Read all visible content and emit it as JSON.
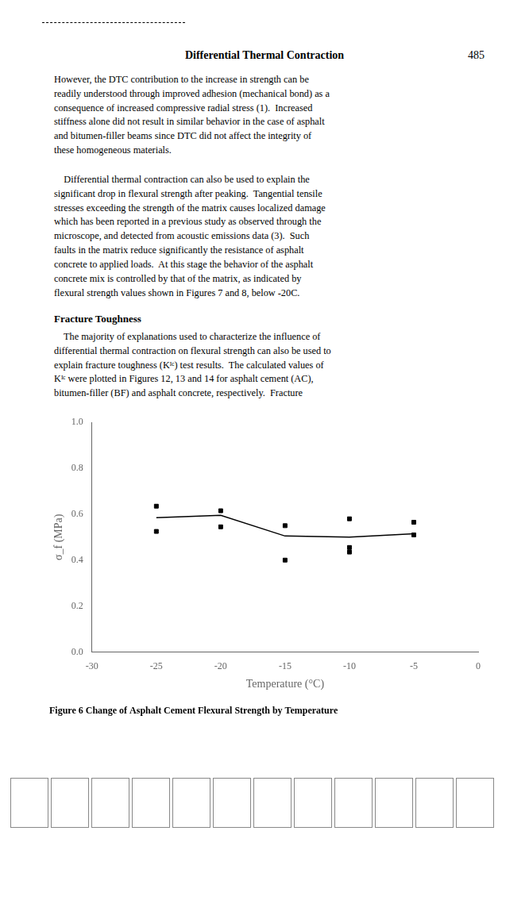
{
  "page": {
    "header": "Differential Thermal Contraction",
    "page_number": "485",
    "paragraphs_before_section": [
      "However, the DTC contribution to the increase in strength can be\nreadily understood through improved adhesion (mechanical bond) as a\nconsequence of increased compressive radial stress (1).  Increased\nstiffness alone did not result in similar behavior in the case of asphalt\nand bitumen-filler beams since DTC did not affect the integrity of\nthese homogeneous materials.",
      "    Differential thermal contraction can also be used to explain the\nsignificant drop in flexural strength after peaking.  Tangential tensile\nstresses exceeding the strength of the matrix causes localized damage\nwhich has been reported in a previous study as observed through the\nmicroscope, and detected from acoustic emissions data (3).  Such\nfaults in the matrix reduce significantly the resistance of asphalt\nconcrete to applied loads.  At this stage the behavior of the asphalt\nconcrete mix is controlled by that of the matrix, as indicated by\nflexural strength values shown in Figures 7 and 8, below -20C."
    ],
    "section_title": "Fracture Toughness",
    "paragraphs_after_section": [
      "    The majority of explanations used to characterize the influence of\ndifferential thermal contraction on flexural strength can also be used to\nexplain fracture toughness (Kᴵᶜ) test results.  The calculated values of\nKᴵᶜ were plotted in Figures 12, 13 and 14 for asphalt cement (AC),\nbitumen-filler (BF) and asphalt concrete, respectively.  Fracture"
    ]
  },
  "chart_data": {
    "type": "scatter",
    "title": "Figure 6 Change of Asphalt Cement Flexural Strength by Temperature",
    "xlabel": "Temperature (°C)",
    "ylabel": "σ_f (MPa)",
    "xlim": [
      -30,
      0
    ],
    "ylim": [
      0,
      1
    ],
    "xticks": [
      -30,
      -25,
      -20,
      -15,
      -10,
      -5,
      0
    ],
    "yticks": [
      {
        "value": 0,
        "label": "0.0"
      },
      0.2,
      0.4,
      0.6,
      0.8,
      {
        "value": 1,
        "label": "1.0"
      }
    ],
    "grid": false,
    "series": [
      {
        "type": "line",
        "color": "black",
        "marker": "none",
        "line_style": "solid",
        "x": [
          -25,
          -20,
          -15,
          -10,
          -5
        ],
        "values": [
          0.585,
          0.595,
          0.505,
          0.5,
          0.515
        ]
      },
      {
        "type": "scatter",
        "color": "black",
        "marker": "square",
        "x": [
          -25,
          -25,
          -20,
          -20,
          -15,
          -15,
          -10,
          -10,
          -10,
          -5,
          -5
        ],
        "values": [
          0.635,
          0.525,
          0.615,
          0.545,
          0.55,
          0.4,
          0.58,
          0.455,
          0.435,
          0.565,
          0.51
        ]
      }
    ]
  }
}
